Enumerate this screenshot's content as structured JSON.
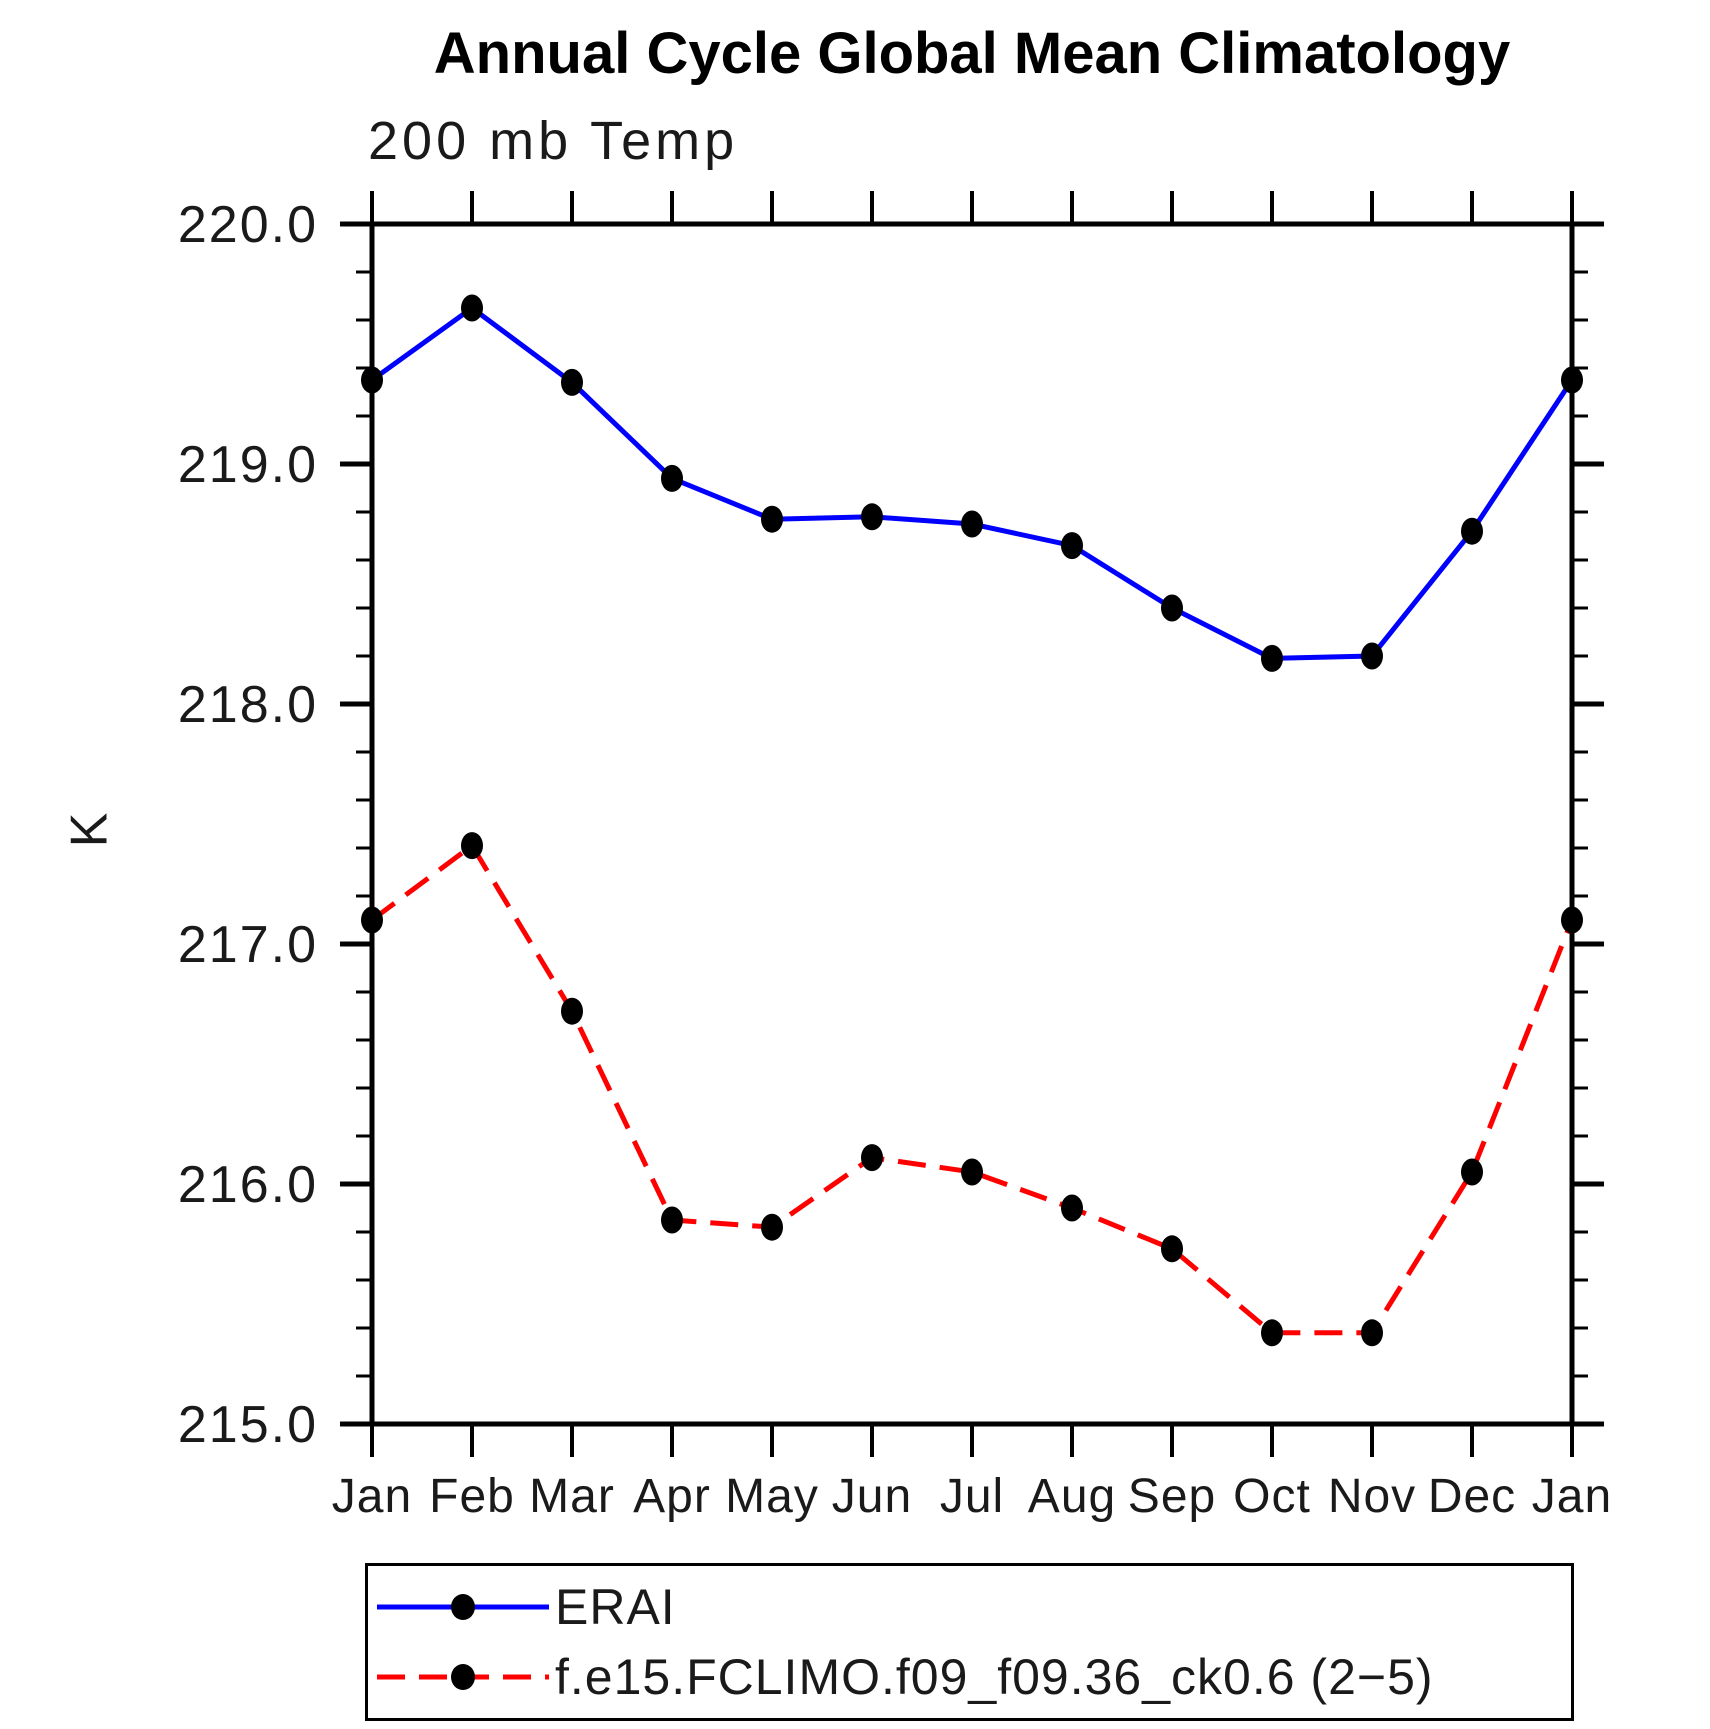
{
  "page": {
    "title": "Annual Cycle Global Mean Climatology"
  },
  "chart_data": {
    "type": "line",
    "title": "Annual Cycle Global Mean Climatology",
    "subtitle": "200 mb Temp",
    "xlabel": "",
    "ylabel": "K",
    "categories": [
      "Jan",
      "Feb",
      "Mar",
      "Apr",
      "May",
      "Jun",
      "Jul",
      "Aug",
      "Sep",
      "Oct",
      "Nov",
      "Dec",
      "Jan"
    ],
    "ylim": [
      215.0,
      220.0
    ],
    "ytick_major_step": 1.0,
    "ytick_minor_step": 0.2,
    "ytick_labels": [
      "215.0",
      "216.0",
      "217.0",
      "218.0",
      "219.0",
      "220.0"
    ],
    "grid": false,
    "legend_position": "bottom",
    "marker": "filled-circle",
    "marker_color": "#000000",
    "axis_color": "#000000",
    "series": [
      {
        "name": "ERAI",
        "color": "#0000ff",
        "line_style": "solid",
        "values": [
          219.35,
          219.65,
          219.34,
          218.94,
          218.77,
          218.78,
          218.75,
          218.66,
          218.4,
          218.19,
          218.2,
          218.72,
          219.35
        ]
      },
      {
        "name": "f.e15.FCLIMO.f09_f09.36_ck0.6 (2−5)",
        "color": "#ff0000",
        "line_style": "dashed",
        "values": [
          217.1,
          217.41,
          216.72,
          215.85,
          215.82,
          216.11,
          216.05,
          215.9,
          215.73,
          215.38,
          215.38,
          216.05,
          217.1
        ]
      }
    ]
  }
}
